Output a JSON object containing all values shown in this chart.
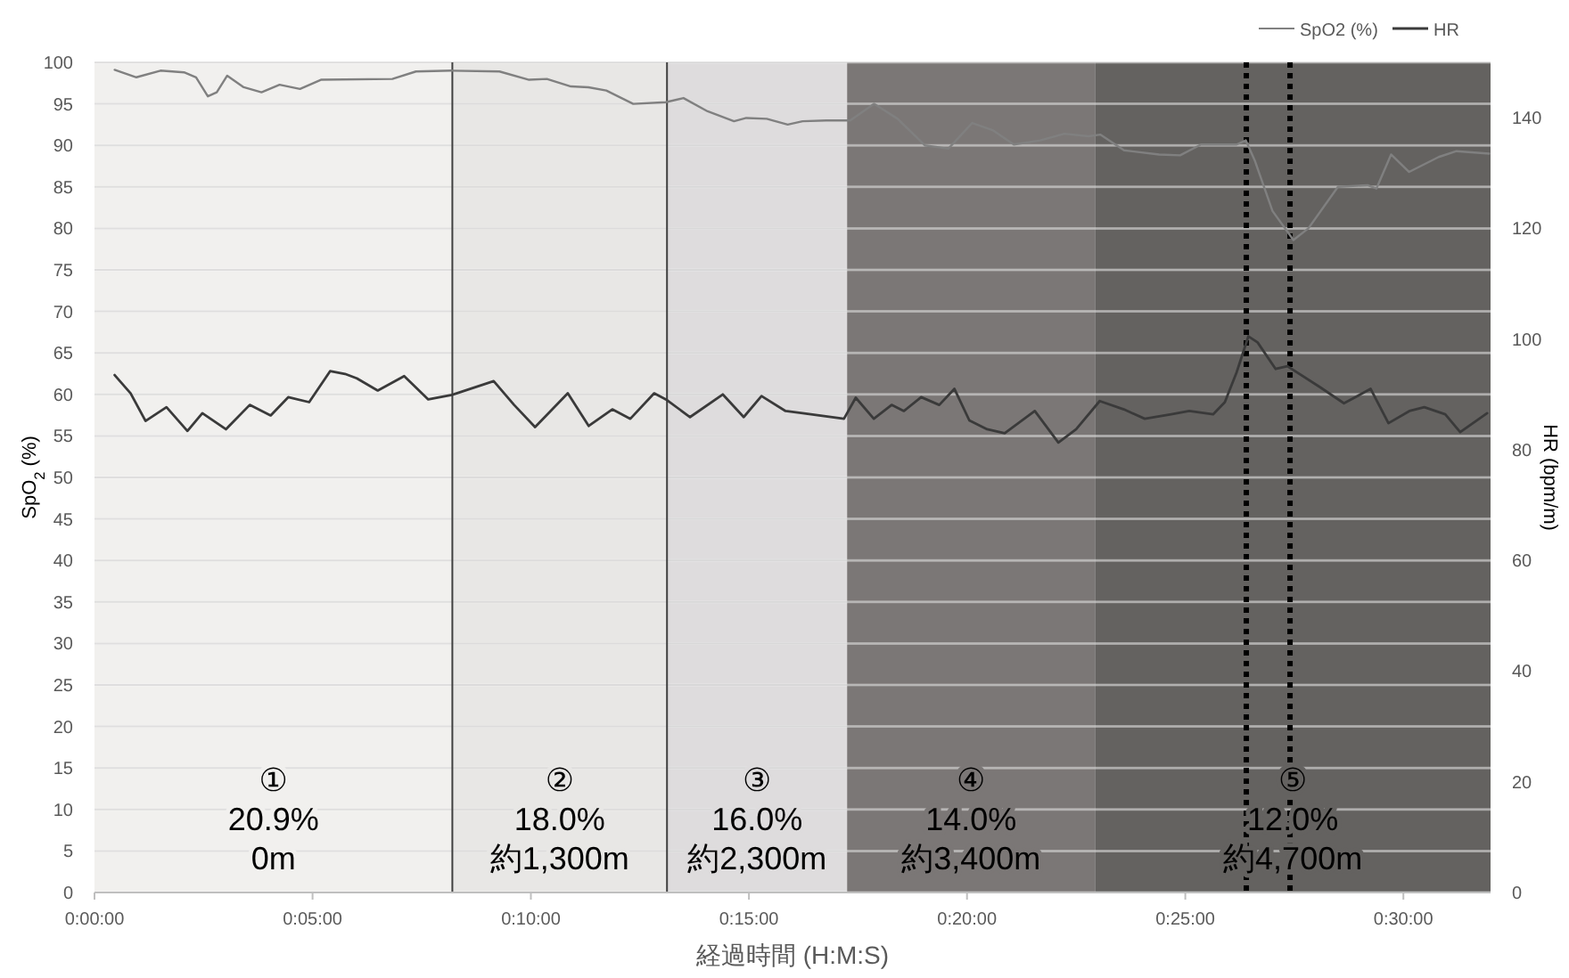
{
  "chart_data": {
    "type": "line",
    "xlabel": "経過時間 (H:M:S)",
    "ylabel": "SpO$_{2}$ (%)",
    "y2label": "HR (bpm/m)",
    "xlim": [
      0,
      0.5333
    ],
    "xticks": [
      {
        "value": 0,
        "label": "0:00:00"
      },
      {
        "value": 0.0833,
        "label": "0:05:00"
      },
      {
        "value": 0.1667,
        "label": "0:10:00"
      },
      {
        "value": 0.25,
        "label": "0:15:00"
      },
      {
        "value": 0.3333,
        "label": "0:20:00"
      },
      {
        "value": 0.4167,
        "label": "0:25:00"
      },
      {
        "value": 0.5,
        "label": "0:30:00"
      }
    ],
    "ylim": [
      0,
      100
    ],
    "yticks": [
      0,
      5,
      10,
      15,
      20,
      25,
      30,
      35,
      40,
      45,
      50,
      55,
      60,
      65,
      70,
      75,
      80,
      85,
      90,
      95,
      100
    ],
    "y2lim": [
      0,
      150
    ],
    "y2ticks": [
      0,
      20,
      40,
      60,
      80,
      100,
      120,
      140
    ],
    "grid": "y",
    "legend": "top right",
    "marker": "none",
    "line_style": "solid",
    "bands": [
      {
        "axis": "x",
        "from": 0,
        "to": 0.1367,
        "label": "①\n20.9%\n0m",
        "color": "#f1f0ee"
      },
      {
        "axis": "x",
        "from": 0.1367,
        "to": 0.2187,
        "label": "②\n18.0%\n約1,300m",
        "color": "#e8e7e5"
      },
      {
        "axis": "x",
        "from": 0.2187,
        "to": 0.2875,
        "label": "③\n16.0%\n約2,300m",
        "color": "#dedcdd"
      },
      {
        "axis": "x",
        "from": 0.2875,
        "to": 0.3822,
        "label": "④\n14.0%\n約3,400m",
        "color": "#7b7776"
      },
      {
        "axis": "x",
        "from": 0.3822,
        "to": 0.5333,
        "label": "⑤\n12.0%\n約4,700m",
        "color": "#646260"
      }
    ],
    "ref_lines": [
      {
        "axis": "x",
        "value": 0.1367,
        "color": "#404040",
        "line_style": "solid"
      },
      {
        "axis": "x",
        "value": 0.2187,
        "color": "#404040",
        "line_style": "solid"
      },
      {
        "axis": "x",
        "value": 0.44,
        "color": "#000000",
        "line_style": "dotted"
      },
      {
        "axis": "x",
        "value": 0.4567,
        "color": "#000000",
        "line_style": "dotted"
      }
    ],
    "series": [
      {
        "name": "SpO2 (%)",
        "color": "#808080",
        "x": [
          0.0077,
          0.016,
          0.0252,
          0.0342,
          0.0388,
          0.0433,
          0.0467,
          0.0507,
          0.057,
          0.0638,
          0.0707,
          0.0785,
          0.0865,
          0.1138,
          0.1228,
          0.1365,
          0.1547,
          0.166,
          0.1728,
          0.182,
          0.1887,
          0.1955,
          0.2058,
          0.2182,
          0.225,
          0.2342,
          0.2443,
          0.249,
          0.2568,
          0.2648,
          0.2705,
          0.2795,
          0.2887,
          0.2978,
          0.3068,
          0.3172,
          0.3262,
          0.3353,
          0.3433,
          0.3512,
          0.3613,
          0.3705,
          0.3797,
          0.3842,
          0.3933,
          0.4067,
          0.4147,
          0.4227,
          0.4363,
          0.4398,
          0.4432,
          0.45,
          0.458,
          0.4637,
          0.475,
          0.4863,
          0.4897,
          0.4953,
          0.5022,
          0.5135,
          0.5203,
          0.5328
        ],
        "values": [
          99.1,
          98.2,
          99,
          98.8,
          98.2,
          95.9,
          96.4,
          98.4,
          97,
          96.4,
          97.3,
          96.8,
          97.9,
          98,
          98.9,
          99,
          98.9,
          97.9,
          98,
          97.1,
          97,
          96.6,
          95,
          95.2,
          95.7,
          94.1,
          92.9,
          93.3,
          93.2,
          92.5,
          92.9,
          93,
          93,
          95,
          93.2,
          90,
          89.6,
          92.7,
          91.8,
          90.1,
          90.6,
          91.4,
          91.1,
          91.3,
          89.4,
          88.9,
          88.8,
          90.1,
          90.1,
          90.6,
          88.2,
          82.1,
          78.6,
          80,
          85,
          85.2,
          84.8,
          88.9,
          86.8,
          88.6,
          89.3,
          89
        ]
      },
      {
        "name": "HR",
        "color": "#3a3a3a",
        "axis": "y2",
        "x": [
          0.0077,
          0.0138,
          0.0195,
          0.0275,
          0.0355,
          0.0412,
          0.0502,
          0.0593,
          0.0673,
          0.074,
          0.082,
          0.09,
          0.0957,
          0.1002,
          0.1082,
          0.1183,
          0.1275,
          0.1365,
          0.1525,
          0.1603,
          0.1683,
          0.1808,
          0.1888,
          0.1978,
          0.2047,
          0.2138,
          0.2183,
          0.2275,
          0.24,
          0.248,
          0.2548,
          0.264,
          0.2705,
          0.2863,
          0.2908,
          0.2977,
          0.3045,
          0.3092,
          0.3158,
          0.3227,
          0.3285,
          0.3342,
          0.341,
          0.3477,
          0.3592,
          0.3682,
          0.375,
          0.384,
          0.3932,
          0.4012,
          0.4113,
          0.4182,
          0.4273,
          0.4318,
          0.4363,
          0.4408,
          0.4443,
          0.4512,
          0.4557,
          0.4682,
          0.4773,
          0.4875,
          0.4943,
          0.5023,
          0.508,
          0.516,
          0.5217,
          0.532
        ],
        "values": [
          93.5,
          90.2,
          85.2,
          87.7,
          83.4,
          86.6,
          83.7,
          88.1,
          86.2,
          89.5,
          88.6,
          94.2,
          93.7,
          92.9,
          90.7,
          93.3,
          89.1,
          89.9,
          92.4,
          88.1,
          84.1,
          90.2,
          84.3,
          87.3,
          85.6,
          90.2,
          89.1,
          85.9,
          90,
          85.9,
          89.7,
          87,
          86.6,
          85.6,
          89.4,
          85.6,
          88.1,
          87,
          89.5,
          88.1,
          91,
          85.3,
          83.7,
          83,
          87,
          81.3,
          83.7,
          88.8,
          87.3,
          85.6,
          86.4,
          87,
          86.4,
          88.6,
          94,
          100.5,
          99.4,
          94.6,
          95.1,
          91.3,
          88.4,
          91,
          84.8,
          87,
          87.7,
          86.4,
          83.2,
          86.6
        ]
      }
    ]
  }
}
